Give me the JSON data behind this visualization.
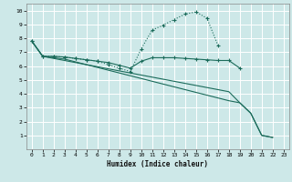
{
  "xlabel": "Humidex (Indice chaleur)",
  "bg_color": "#cde8e8",
  "grid_color": "#ffffff",
  "line_color": "#1a6b5a",
  "xlim": [
    -0.5,
    23.5
  ],
  "ylim": [
    0,
    10.5
  ],
  "xticks": [
    0,
    1,
    2,
    3,
    4,
    5,
    6,
    7,
    8,
    9,
    10,
    11,
    12,
    13,
    14,
    15,
    16,
    17,
    18,
    19,
    20,
    21,
    22,
    23
  ],
  "yticks": [
    1,
    2,
    3,
    4,
    5,
    6,
    7,
    8,
    9,
    10
  ],
  "line1_x": [
    0,
    1,
    2,
    3,
    4,
    5,
    6,
    7,
    8,
    9,
    10,
    11,
    12,
    13,
    14,
    15,
    16,
    17,
    18,
    19
  ],
  "line1_y": [
    7.8,
    6.7,
    6.7,
    6.65,
    6.55,
    6.45,
    6.35,
    6.25,
    6.05,
    5.85,
    6.35,
    6.6,
    6.6,
    6.6,
    6.55,
    6.5,
    6.45,
    6.4,
    6.4,
    5.85
  ],
  "line2_x": [
    0,
    1,
    2,
    3,
    4,
    5,
    6,
    7,
    8,
    9,
    10,
    11,
    12,
    13,
    14,
    15,
    16,
    17
  ],
  "line2_y": [
    7.8,
    6.7,
    6.7,
    6.65,
    6.55,
    6.45,
    6.35,
    6.1,
    5.85,
    5.6,
    7.25,
    8.6,
    8.95,
    9.35,
    9.75,
    9.9,
    9.45,
    7.5
  ],
  "line3_x": [
    0,
    1,
    2,
    3,
    4,
    5,
    6,
    7,
    8,
    9,
    10,
    11,
    12,
    13,
    14,
    15,
    16,
    17,
    18,
    19,
    20,
    21,
    22
  ],
  "line3_y": [
    7.8,
    6.7,
    6.55,
    6.4,
    6.25,
    6.1,
    5.95,
    5.8,
    5.65,
    5.5,
    5.35,
    5.2,
    5.05,
    4.9,
    4.75,
    4.6,
    4.45,
    4.3,
    4.15,
    3.35,
    2.6,
    1.0,
    0.85
  ],
  "line4_x": [
    0,
    1,
    2,
    3,
    4,
    5,
    6,
    7,
    8,
    9,
    10,
    11,
    12,
    13,
    14,
    15,
    16,
    17,
    18,
    19,
    20,
    21,
    22
  ],
  "line4_y": [
    7.8,
    6.7,
    6.6,
    6.5,
    6.3,
    6.1,
    5.9,
    5.7,
    5.5,
    5.3,
    5.1,
    4.9,
    4.7,
    4.5,
    4.3,
    4.1,
    3.9,
    3.7,
    3.5,
    3.35,
    2.6,
    1.0,
    0.85
  ]
}
